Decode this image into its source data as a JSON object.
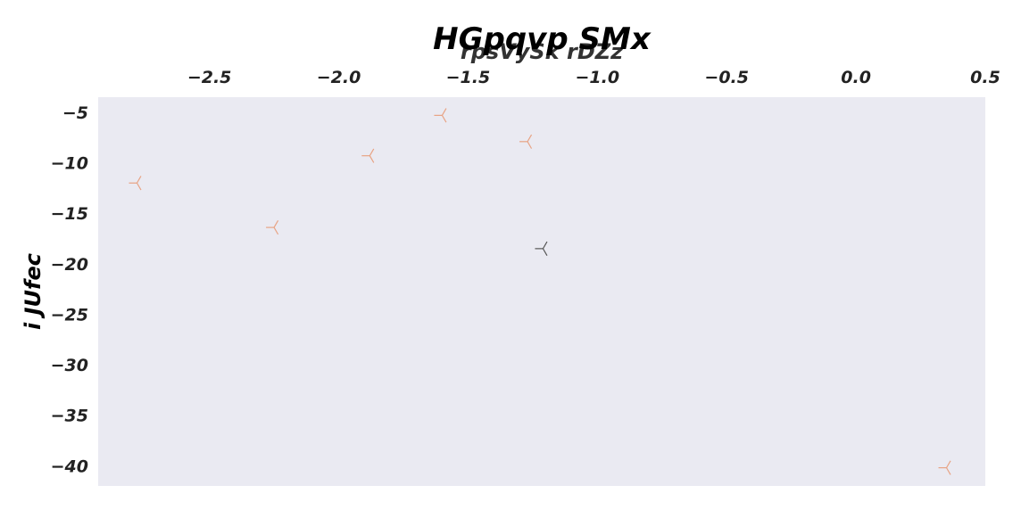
{
  "chart_data": {
    "type": "scatter",
    "title": "HGpqvp SMx",
    "xlabel": "rpsVySk rDZz",
    "ylabel": "i JUfec",
    "xlim": [
      -2.93,
      0.5
    ],
    "ylim": [
      -42,
      -3.5
    ],
    "x_ticks": [
      -2.5,
      -2.0,
      -1.5,
      -1.0,
      -0.5,
      0.0,
      0.5
    ],
    "x_tick_labels": [
      "−2.5",
      "−2.0",
      "−1.5",
      "−1.0",
      "−0.5",
      "0.0",
      "0.5"
    ],
    "y_ticks": [
      -5,
      -10,
      -15,
      -20,
      -25,
      -30,
      -35,
      -40
    ],
    "y_tick_labels": [
      "−5",
      "−10",
      "−15",
      "−20",
      "−25",
      "−30",
      "−35",
      "−40"
    ],
    "x_axis_position": "top",
    "grid": false,
    "background_color": "#eaeaf2",
    "marker": "tri_down",
    "points": [
      {
        "x": -2.78,
        "y": -12.0,
        "color": "#e8a384"
      },
      {
        "x": -2.25,
        "y": -16.4,
        "color": "#e8a384"
      },
      {
        "x": -1.88,
        "y": -9.3,
        "color": "#e8a384"
      },
      {
        "x": -1.6,
        "y": -5.3,
        "color": "#e8a384"
      },
      {
        "x": -1.27,
        "y": -7.9,
        "color": "#e8a384"
      },
      {
        "x": -1.21,
        "y": -18.5,
        "color": "#555555"
      },
      {
        "x": 0.35,
        "y": -40.2,
        "color": "#e8a384"
      }
    ]
  }
}
